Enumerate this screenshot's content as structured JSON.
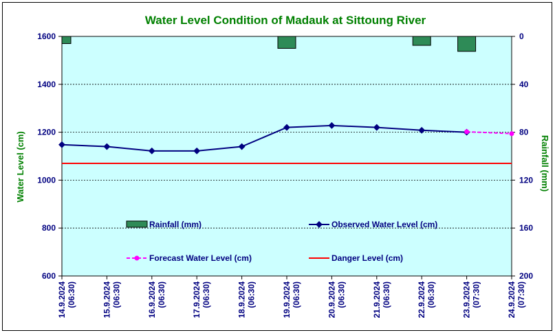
{
  "chart_data": {
    "type": "line",
    "title": "Water Level Condition of Madauk at Sittoung River",
    "ylabel": "Water Level (cm)",
    "y2label": "Rainfall (mm)",
    "ylim": [
      600,
      1600
    ],
    "y2lim": [
      0,
      200
    ],
    "y2_inverted": true,
    "yticks": [
      "1600",
      "1400",
      "1200",
      "1000",
      "800",
      "600"
    ],
    "y2ticks": [
      "0",
      "40",
      "80",
      "120",
      "160",
      "200"
    ],
    "categories": [
      [
        "14.9.2024",
        "(06:30)"
      ],
      [
        "15.9.2024",
        "(06:30)"
      ],
      [
        "16.9.2024",
        "(06:30)"
      ],
      [
        "17.9.2024",
        "(06:30)"
      ],
      [
        "18.9.2024",
        "(06:30)"
      ],
      [
        "19.9.2024",
        "(06:30)"
      ],
      [
        "20.9.2024",
        "(06:30)"
      ],
      [
        "21.9.2024",
        "(06:30)"
      ],
      [
        "22.9.2024",
        "(06:30)"
      ],
      [
        "23.9.2024",
        "(07:30)"
      ],
      [
        "24.9.2024",
        "(07:30)"
      ]
    ],
    "series": [
      {
        "name": "Rainfall (mm)",
        "kind": "bar",
        "axis": "right",
        "color": "#2E8B57",
        "values": [
          6,
          null,
          null,
          null,
          null,
          10,
          null,
          null,
          7.5,
          12.5,
          null
        ]
      },
      {
        "name": "Observed Water Level (cm)",
        "kind": "line",
        "color": "#000080",
        "values": [
          1148,
          1140,
          1122,
          1122,
          1140,
          1220,
          1228,
          1220,
          1208,
          1200,
          null
        ]
      },
      {
        "name": "Forecast Water Level (cm)",
        "kind": "dashed-line",
        "color": "#FF00FF",
        "values": [
          null,
          null,
          null,
          null,
          null,
          null,
          null,
          null,
          null,
          1202,
          1194
        ]
      },
      {
        "name": "Danger Level (cm)",
        "kind": "hline",
        "color": "#FF0000",
        "value": 1070
      }
    ],
    "grid": true,
    "plot_background": "#CCFFFF",
    "legend_position": "inside-bottom"
  }
}
